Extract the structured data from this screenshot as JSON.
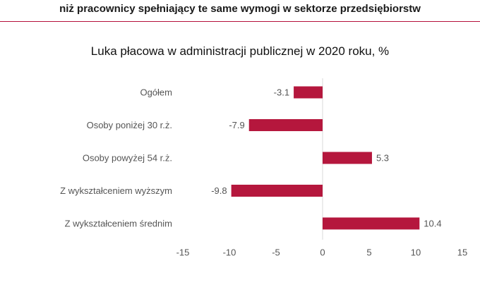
{
  "header": {
    "line1": "",
    "line2": "niż pracownicy spełniający te same wymogi w sektorze przedsiębiorstw"
  },
  "colors": {
    "bar": "#b5173d",
    "divider": "#b5103a",
    "axis": "#d9d9d9",
    "text": "#555555"
  },
  "chart_data": {
    "type": "bar",
    "orientation": "horizontal",
    "title": "Luka płacowa w administracji publicznej w 2020 roku, %",
    "categories": [
      "Ogółem",
      "Osoby poniżej 30 r.ż.",
      "Osoby powyżej 54 r.ż.",
      "Z wykształceniem wyższym",
      "Z wykształceniem średnim"
    ],
    "values": [
      -3.1,
      -7.9,
      5.3,
      -9.8,
      10.4
    ],
    "value_labels": [
      "-3.1",
      "-7.9",
      "5.3",
      "-9.8",
      "10.4"
    ],
    "xlim": [
      -15,
      15
    ],
    "xticks": [
      -15,
      -10,
      -5,
      0,
      5,
      10,
      15
    ],
    "xtick_labels": [
      "-15",
      "-10",
      "-5",
      "0",
      "5",
      "10",
      "15"
    ],
    "xlabel": "",
    "ylabel": "",
    "grid": false,
    "legend": "none"
  }
}
